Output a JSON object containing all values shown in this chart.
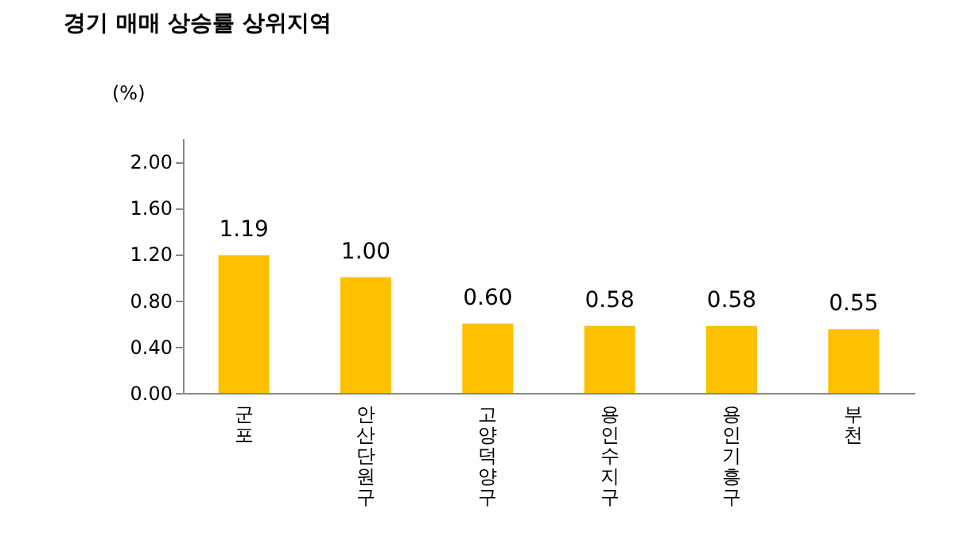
{
  "chart_data": {
    "type": "bar",
    "title": "경기 매매 상승률 상위지역",
    "ylabel": "(%)",
    "categories": [
      "군포",
      "안산단원구",
      "고양덕양구",
      "용인수지구",
      "용인기흥구",
      "부천"
    ],
    "values": [
      1.19,
      1.0,
      0.6,
      0.58,
      0.58,
      0.55
    ],
    "value_labels": [
      "1.19",
      "1.00",
      "0.60",
      "0.58",
      "0.58",
      "0.55"
    ],
    "color": "#ffc000",
    "ylim": [
      0,
      2.2
    ],
    "yticks": [
      {
        "value": 0,
        "label": "0.00"
      },
      {
        "value": 0.4,
        "label": "0.40"
      },
      {
        "value": 0.8,
        "label": "0.80"
      },
      {
        "value": 1.2,
        "label": "1.20"
      },
      {
        "value": 1.6,
        "label": "1.60"
      },
      {
        "value": 2,
        "label": "2.00"
      }
    ]
  }
}
